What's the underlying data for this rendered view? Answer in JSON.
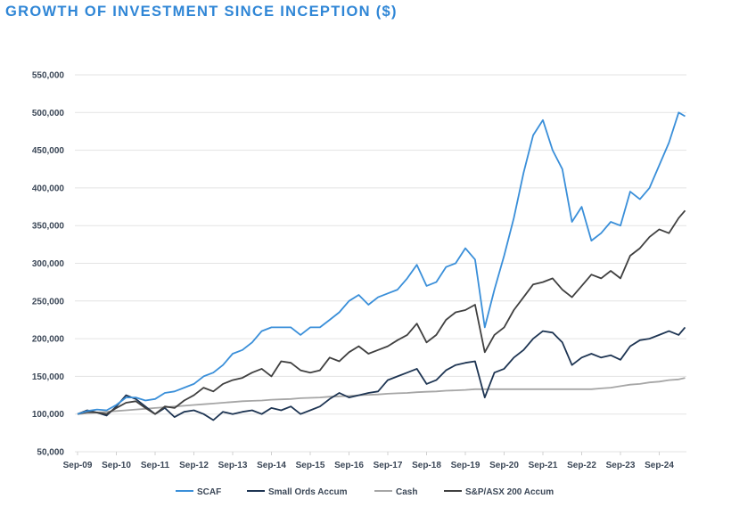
{
  "chart_data": {
    "type": "line",
    "title": "GROWTH OF INVESTMENT SINCE INCEPTION ($)",
    "xlabel": "",
    "ylabel": "",
    "ylim": [
      50000,
      550000
    ],
    "yticks": [
      "50,000",
      "100,000",
      "150,000",
      "200,000",
      "250,000",
      "300,000",
      "350,000",
      "400,000",
      "450,000",
      "500,000",
      "550,000"
    ],
    "xticks": [
      "Sep-09",
      "Sep-10",
      "Sep-11",
      "Sep-12",
      "Sep-13",
      "Sep-14",
      "Sep-15",
      "Sep-16",
      "Sep-17",
      "Sep-18",
      "Sep-19",
      "Sep-20",
      "Sep-21",
      "Sep-22",
      "Sep-23",
      "Sep-24"
    ],
    "grid": "horizontal",
    "legend_position": "bottom",
    "x": [
      "2009-09",
      "2009-12",
      "2010-03",
      "2010-06",
      "2010-09",
      "2010-12",
      "2011-03",
      "2011-06",
      "2011-09",
      "2011-12",
      "2012-03",
      "2012-06",
      "2012-09",
      "2012-12",
      "2013-03",
      "2013-06",
      "2013-09",
      "2013-12",
      "2014-03",
      "2014-06",
      "2014-09",
      "2014-12",
      "2015-03",
      "2015-06",
      "2015-09",
      "2015-12",
      "2016-03",
      "2016-06",
      "2016-09",
      "2016-12",
      "2017-03",
      "2017-06",
      "2017-09",
      "2017-12",
      "2018-03",
      "2018-06",
      "2018-09",
      "2018-12",
      "2019-03",
      "2019-06",
      "2019-09",
      "2019-12",
      "2020-03",
      "2020-06",
      "2020-09",
      "2020-12",
      "2021-03",
      "2021-06",
      "2021-09",
      "2021-12",
      "2022-03",
      "2022-06",
      "2022-09",
      "2022-12",
      "2023-03",
      "2023-06",
      "2023-09",
      "2023-12",
      "2024-03",
      "2024-06",
      "2024-09",
      "2024-12",
      "2025-03",
      "2025-05"
    ],
    "series": [
      {
        "name": "SCAF",
        "color": "#3a8fd9",
        "values": [
          100000,
          104000,
          106000,
          105000,
          112000,
          122000,
          122000,
          118000,
          120000,
          128000,
          130000,
          135000,
          140000,
          150000,
          155000,
          165000,
          180000,
          185000,
          195000,
          210000,
          215000,
          215000,
          215000,
          205000,
          215000,
          215000,
          225000,
          235000,
          250000,
          258000,
          245000,
          255000,
          260000,
          265000,
          280000,
          298000,
          270000,
          275000,
          295000,
          300000,
          320000,
          305000,
          215000,
          265000,
          310000,
          360000,
          420000,
          470000,
          490000,
          450000,
          425000,
          355000,
          375000,
          330000,
          340000,
          355000,
          350000,
          395000,
          385000,
          400000,
          430000,
          460000,
          500000,
          495000
        ]
      },
      {
        "name": "Small Ords Accum",
        "color": "#1e3553",
        "values": [
          100000,
          105000,
          102000,
          98000,
          110000,
          125000,
          120000,
          110000,
          100000,
          108000,
          96000,
          103000,
          105000,
          100000,
          92000,
          103000,
          100000,
          103000,
          105000,
          100000,
          108000,
          105000,
          110000,
          100000,
          105000,
          110000,
          120000,
          128000,
          122000,
          125000,
          128000,
          130000,
          145000,
          150000,
          155000,
          160000,
          140000,
          145000,
          158000,
          165000,
          168000,
          170000,
          122000,
          155000,
          160000,
          175000,
          185000,
          200000,
          210000,
          208000,
          195000,
          165000,
          175000,
          180000,
          175000,
          178000,
          172000,
          190000,
          198000,
          200000,
          205000,
          210000,
          205000,
          215000
        ]
      },
      {
        "name": "Cash",
        "color": "#a6a6a6",
        "values": [
          100000,
          101000,
          102000,
          103000,
          104000,
          105000,
          106000,
          107000,
          108000,
          109000,
          110000,
          111000,
          112000,
          113000,
          114000,
          115000,
          116000,
          117000,
          117500,
          118000,
          119000,
          119500,
          120000,
          121000,
          121500,
          122000,
          123000,
          123500,
          124000,
          125000,
          125500,
          126000,
          127000,
          127500,
          128000,
          129000,
          129500,
          130000,
          131000,
          131500,
          132000,
          133000,
          133000,
          133000,
          133000,
          133000,
          133000,
          133000,
          133000,
          133000,
          133000,
          133000,
          133000,
          133000,
          134000,
          135000,
          137000,
          139000,
          140000,
          142000,
          143000,
          145000,
          146000,
          148000
        ]
      },
      {
        "name": "S&P/ASX 200 Accum",
        "color": "#404040",
        "values": [
          100000,
          103000,
          102000,
          100000,
          108000,
          115000,
          117000,
          108000,
          100000,
          110000,
          108000,
          118000,
          125000,
          135000,
          130000,
          140000,
          145000,
          148000,
          155000,
          160000,
          150000,
          170000,
          168000,
          158000,
          155000,
          158000,
          175000,
          170000,
          182000,
          190000,
          180000,
          185000,
          190000,
          198000,
          205000,
          220000,
          195000,
          205000,
          225000,
          235000,
          238000,
          245000,
          182000,
          205000,
          215000,
          238000,
          255000,
          272000,
          275000,
          280000,
          265000,
          255000,
          270000,
          285000,
          280000,
          290000,
          280000,
          310000,
          320000,
          335000,
          345000,
          340000,
          360000,
          370000
        ]
      }
    ]
  }
}
